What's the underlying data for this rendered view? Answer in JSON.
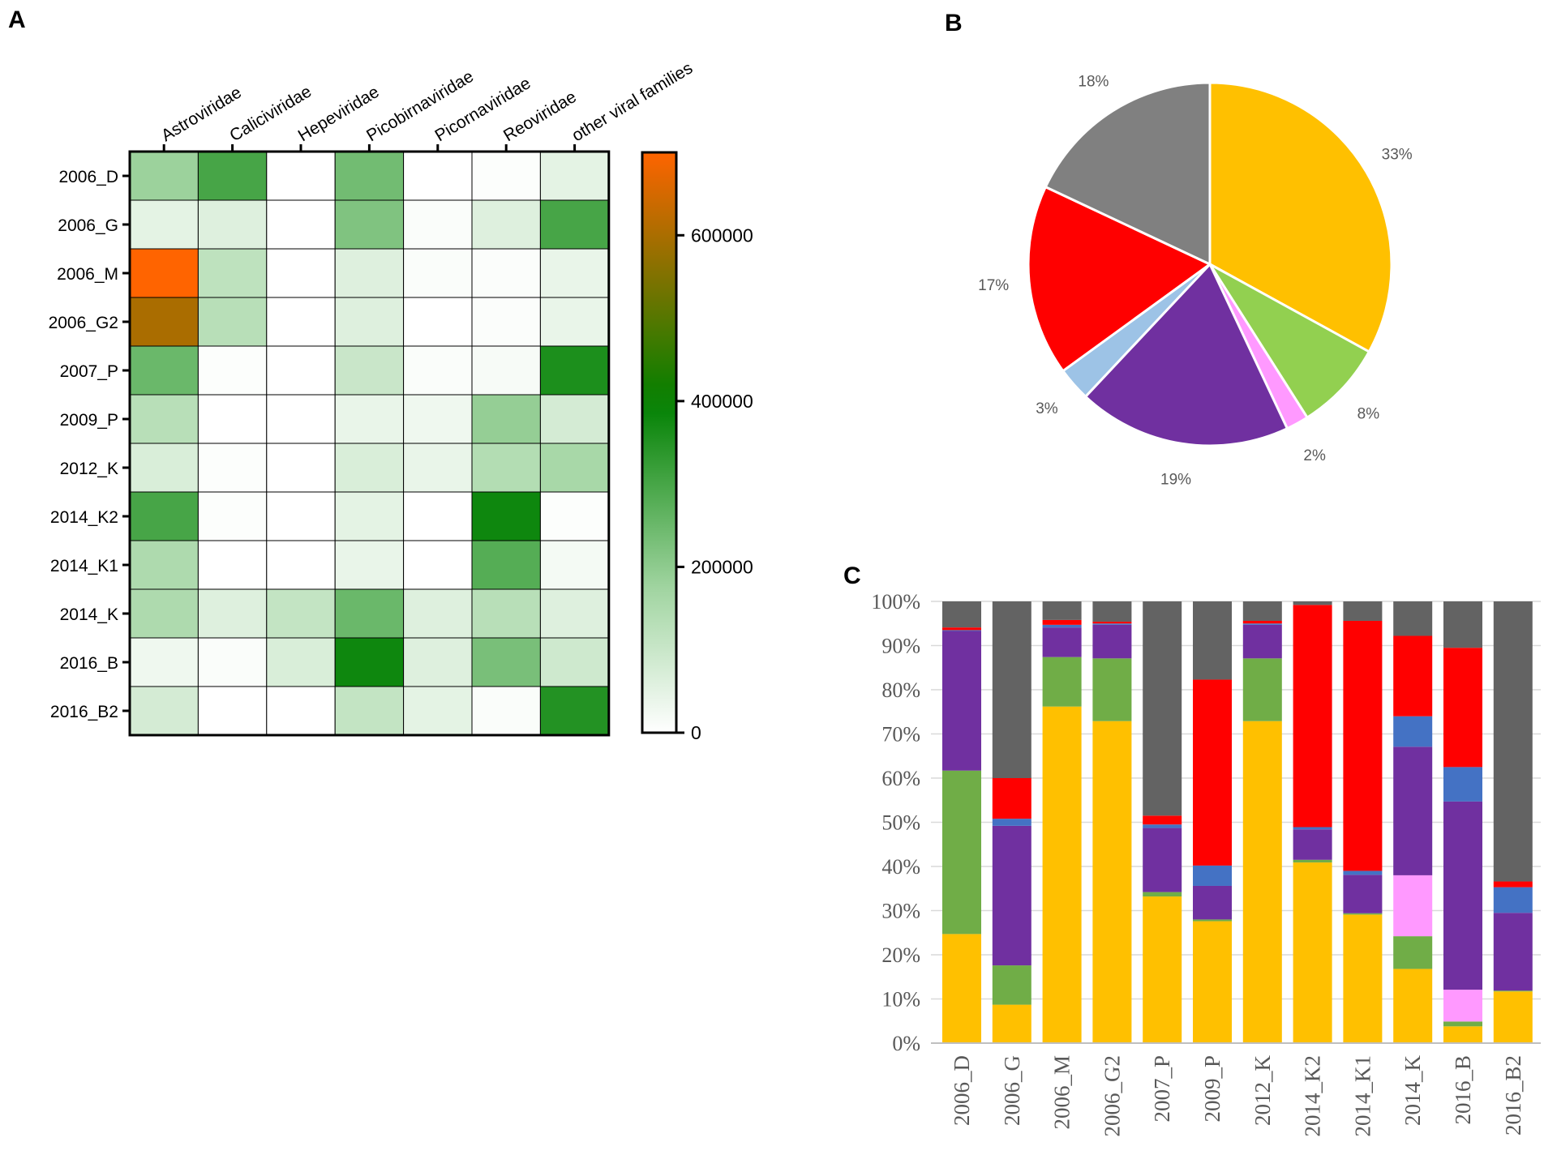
{
  "panels": {
    "a": "A",
    "b": "B",
    "c": "C"
  },
  "colors": {
    "Astroviridae": "#FFC000",
    "Caliciviridae": "#70AD47",
    "Hepeviridae": "#FF99FF",
    "Picobirnaviridae": "#7030A0",
    "Picornaviridae": "#4472C4",
    "Reoviridae": "#FF0000",
    "other viral families": "#636363",
    "pie_blue": "#9DC3E6",
    "pie_green": "#92D050",
    "pie_gray": "#808080"
  },
  "chart_data": [
    {
      "type": "heatmap",
      "panel": "A",
      "columns": [
        "Astroviridae",
        "Caliciviridae",
        "Hepeviridae",
        "Picobirnaviridae",
        "Picornaviridae",
        "Reoviridae",
        "other viral families"
      ],
      "rows": [
        "2006_D",
        "2006_G",
        "2006_M",
        "2006_G2",
        "2007_P",
        "2009_P",
        "2012_K",
        "2014_K2",
        "2014_K1",
        "2014_K",
        "2016_B",
        "2016_B2"
      ],
      "values": [
        [
          180000,
          300000,
          0,
          240000,
          0,
          5000,
          50000
        ],
        [
          50000,
          60000,
          0,
          220000,
          10000,
          60000,
          300000
        ],
        [
          700000,
          120000,
          0,
          60000,
          10000,
          8000,
          40000
        ],
        [
          600000,
          130000,
          0,
          60000,
          0,
          8000,
          40000
        ],
        [
          250000,
          5000,
          0,
          100000,
          10000,
          15000,
          360000
        ],
        [
          130000,
          0,
          0,
          40000,
          30000,
          190000,
          80000
        ],
        [
          70000,
          5000,
          0,
          70000,
          40000,
          140000,
          160000
        ],
        [
          300000,
          5000,
          0,
          50000,
          0,
          380000,
          5000
        ],
        [
          150000,
          0,
          0,
          40000,
          0,
          280000,
          20000
        ],
        [
          150000,
          60000,
          110000,
          250000,
          60000,
          130000,
          60000
        ],
        [
          30000,
          10000,
          70000,
          380000,
          60000,
          230000,
          90000
        ],
        [
          80000,
          0,
          0,
          110000,
          50000,
          10000,
          350000
        ]
      ],
      "colorbar": {
        "min": 0,
        "max": 700000,
        "ticks": [
          "0",
          "200000",
          "400000",
          "600000"
        ],
        "tick_values": [
          0,
          200000,
          400000,
          600000
        ]
      }
    },
    {
      "type": "pie",
      "panel": "B",
      "slices": [
        {
          "value": 33,
          "label": "33%",
          "color": "#FFC000"
        },
        {
          "value": 8,
          "label": "8%",
          "color": "#92D050"
        },
        {
          "value": 2,
          "label": "2%",
          "color": "#FF99FF"
        },
        {
          "value": 19,
          "label": "19%",
          "color": "#7030A0"
        },
        {
          "value": 3,
          "label": "3%",
          "color": "#9DC3E6"
        },
        {
          "value": 17,
          "label": "17%",
          "color": "#FF0000"
        },
        {
          "value": 18,
          "label": "18%",
          "color": "#808080"
        }
      ]
    },
    {
      "type": "bar",
      "panel": "C",
      "stacked": true,
      "categories": [
        "2006_D",
        "2006_G",
        "2006_M",
        "2006_G2",
        "2007_P",
        "2009_P",
        "2012_K",
        "2014_K2",
        "2014_K1",
        "2014_K",
        "2016_B",
        "2016_B2"
      ],
      "ylim": [
        0,
        100
      ],
      "yticks": [
        "0%",
        "10%",
        "20%",
        "30%",
        "40%",
        "50%",
        "60%",
        "70%",
        "80%",
        "90%",
        "100%"
      ],
      "series": [
        {
          "name": "Astroviridae",
          "color": "#FFC000",
          "values": [
            24.7,
            8.7,
            76.2,
            72.9,
            33.2,
            27.6,
            72.9,
            40.9,
            29.1,
            16.8,
            3.8,
            11.7
          ]
        },
        {
          "name": "Caliciviridae",
          "color": "#70AD47",
          "values": [
            37.0,
            8.9,
            11.2,
            14.2,
            1.0,
            0.4,
            14.2,
            0.6,
            0.3,
            7.4,
            1.1,
            0.2
          ]
        },
        {
          "name": "Hepeviridae",
          "color": "#FF99FF",
          "values": [
            0,
            0,
            0,
            0,
            0,
            0,
            0,
            0,
            0,
            13.8,
            7.2,
            0
          ]
        },
        {
          "name": "Picobirnaviridae",
          "color": "#7030A0",
          "values": [
            31.6,
            31.6,
            6.7,
            7.6,
            14.5,
            7.6,
            7.6,
            6.9,
            8.7,
            29.1,
            42.6,
            17.6
          ]
        },
        {
          "name": "Picornaviridae",
          "color": "#4472C4",
          "values": [
            0.2,
            1.6,
            0.6,
            0.3,
            0.8,
            4.6,
            0.3,
            0.5,
            0.9,
            6.9,
            7.8,
            5.8
          ]
        },
        {
          "name": "Reoviridae",
          "color": "#FF0000",
          "values": [
            0.6,
            9.2,
            1.1,
            0.4,
            2.0,
            42.1,
            0.6,
            50.3,
            56.6,
            18.2,
            27.0,
            1.3
          ]
        },
        {
          "name": "other viral families",
          "color": "#636363",
          "values": [
            5.9,
            40.0,
            4.2,
            4.6,
            48.5,
            17.7,
            4.4,
            0.8,
            4.4,
            7.8,
            10.5,
            63.4
          ]
        }
      ]
    }
  ]
}
